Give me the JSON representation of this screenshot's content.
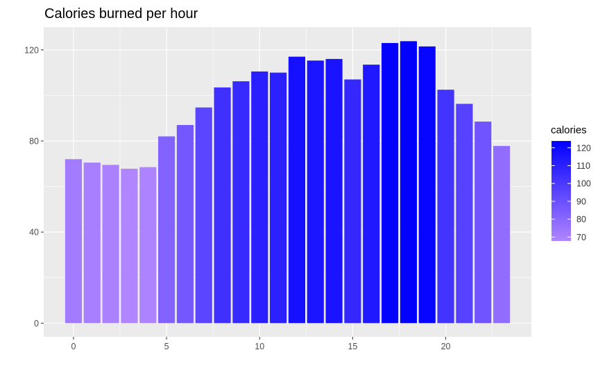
{
  "chart_data": {
    "type": "bar",
    "title": "Calories burned per hour",
    "xlabel": "",
    "ylabel": "",
    "x": [
      0,
      1,
      2,
      3,
      4,
      5,
      6,
      7,
      8,
      9,
      10,
      11,
      12,
      13,
      14,
      15,
      16,
      17,
      18,
      19,
      20,
      21,
      22,
      23
    ],
    "values": [
      72,
      70.5,
      69.5,
      67.8,
      68.5,
      82,
      87,
      94.7,
      103.5,
      106.2,
      110.5,
      110,
      117,
      115.3,
      116,
      107,
      113.5,
      123,
      123.8,
      121.5,
      102.5,
      96.3,
      88.5,
      77.8
    ],
    "xlim": [
      -1.6,
      24.6
    ],
    "ylim": [
      -6,
      130
    ],
    "x_ticks": [
      0,
      5,
      10,
      15,
      20
    ],
    "x_tick_labels": [
      "0",
      "5",
      "10",
      "15",
      "20"
    ],
    "y_ticks": [
      0,
      40,
      80,
      120
    ],
    "y_tick_labels": [
      "0",
      "40",
      "80",
      "120"
    ],
    "grid": true,
    "panel_background": "#ebebeb",
    "grid_color": "#ffffff",
    "legend": {
      "title": "calories",
      "position": "right",
      "breaks": [
        70,
        80,
        90,
        100,
        110,
        120
      ],
      "break_labels": [
        "70",
        "80",
        "90",
        "100",
        "110",
        "120"
      ],
      "range": [
        67.8,
        123.8
      ],
      "low_color": "#b085ff",
      "high_color": "#0000ff"
    }
  }
}
